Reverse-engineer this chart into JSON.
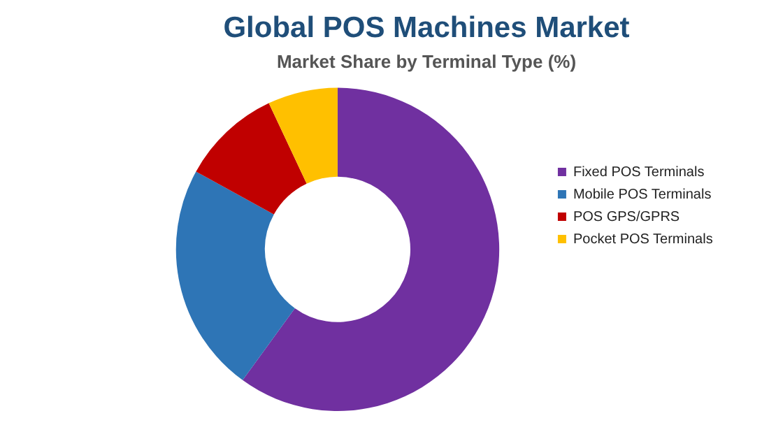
{
  "chart_data": {
    "type": "donut",
    "title": "Global POS Machines Market",
    "subtitle": "Market Share by Terminal Type (%)",
    "categories": [
      "Fixed POS Terminals",
      "Mobile POS Terminals",
      "POS GPS/GPRS",
      "Pocket POS Terminals"
    ],
    "values": [
      60,
      23,
      10,
      7
    ],
    "colors": [
      "#7030a0",
      "#2e75b6",
      "#c00000",
      "#ffc000"
    ],
    "legend": "right"
  }
}
